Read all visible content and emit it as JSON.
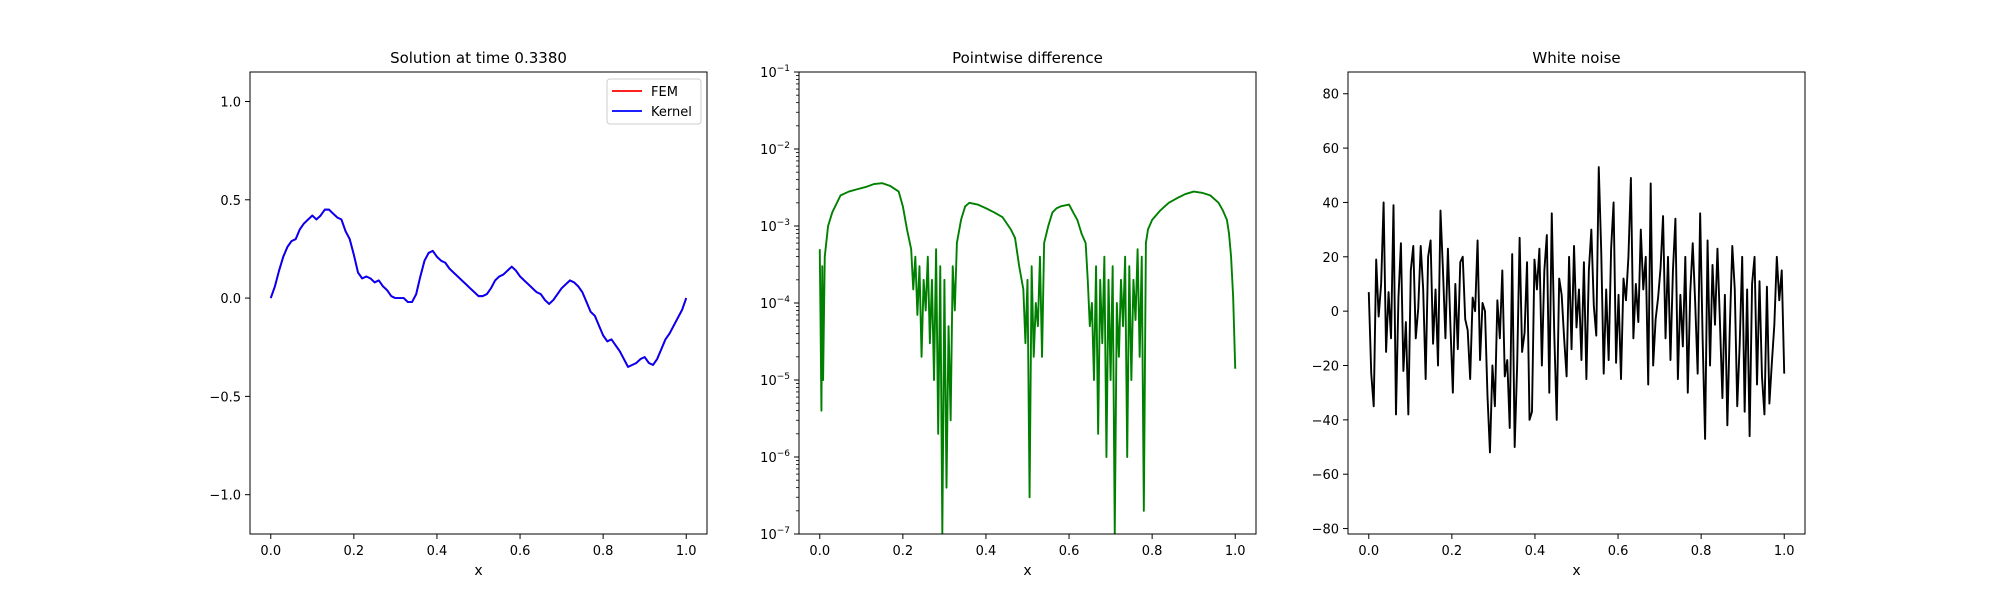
{
  "chart_data": [
    {
      "type": "line",
      "title": "Solution at time 0.3380",
      "xlabel": "x",
      "ylabel": "",
      "xlim": [
        -0.05,
        1.05
      ],
      "ylim": [
        -1.2,
        1.15
      ],
      "xticks": [
        "0.0",
        "0.2",
        "0.4",
        "0.6",
        "0.8",
        "1.0"
      ],
      "yticks": [
        "−1.0",
        "−0.5",
        "0.0",
        "0.5",
        "1.0"
      ],
      "legend": "top-right",
      "series": [
        {
          "name": "FEM",
          "color": "#ff0000",
          "x": [
            0.0,
            0.01,
            0.02,
            0.03,
            0.04,
            0.05,
            0.06,
            0.07,
            0.08,
            0.09,
            0.1,
            0.11,
            0.12,
            0.13,
            0.14,
            0.15,
            0.16,
            0.17,
            0.18,
            0.19,
            0.2,
            0.21,
            0.22,
            0.23,
            0.24,
            0.25,
            0.26,
            0.27,
            0.28,
            0.29,
            0.3,
            0.31,
            0.32,
            0.33,
            0.34,
            0.35,
            0.36,
            0.37,
            0.38,
            0.39,
            0.4,
            0.41,
            0.42,
            0.43,
            0.44,
            0.45,
            0.46,
            0.47,
            0.48,
            0.49,
            0.5,
            0.51,
            0.52,
            0.53,
            0.54,
            0.55,
            0.56,
            0.57,
            0.58,
            0.59,
            0.6,
            0.61,
            0.62,
            0.63,
            0.64,
            0.65,
            0.66,
            0.67,
            0.68,
            0.69,
            0.7,
            0.71,
            0.72,
            0.73,
            0.74,
            0.75,
            0.76,
            0.77,
            0.78,
            0.79,
            0.8,
            0.81,
            0.82,
            0.83,
            0.84,
            0.85,
            0.86,
            0.87,
            0.88,
            0.89,
            0.9,
            0.91,
            0.92,
            0.93,
            0.94,
            0.95,
            0.96,
            0.97,
            0.98,
            0.99,
            1.0
          ],
          "y": [
            0.0,
            0.06,
            0.14,
            0.21,
            0.26,
            0.29,
            0.3,
            0.35,
            0.38,
            0.4,
            0.42,
            0.4,
            0.42,
            0.45,
            0.45,
            0.43,
            0.41,
            0.4,
            0.34,
            0.3,
            0.22,
            0.13,
            0.1,
            0.11,
            0.1,
            0.08,
            0.09,
            0.06,
            0.04,
            0.01,
            0.0,
            0.0,
            0.0,
            -0.02,
            -0.02,
            0.02,
            0.11,
            0.19,
            0.23,
            0.24,
            0.21,
            0.19,
            0.18,
            0.15,
            0.13,
            0.11,
            0.09,
            0.07,
            0.05,
            0.03,
            0.01,
            0.01,
            0.02,
            0.05,
            0.09,
            0.11,
            0.12,
            0.14,
            0.16,
            0.14,
            0.11,
            0.09,
            0.07,
            0.05,
            0.03,
            0.02,
            -0.01,
            -0.03,
            -0.01,
            0.02,
            0.05,
            0.07,
            0.09,
            0.08,
            0.06,
            0.03,
            -0.02,
            -0.07,
            -0.09,
            -0.14,
            -0.19,
            -0.22,
            -0.21,
            -0.24,
            -0.27,
            -0.31,
            -0.35,
            -0.34,
            -0.33,
            -0.31,
            -0.3,
            -0.33,
            -0.34,
            -0.31,
            -0.26,
            -0.21,
            -0.18,
            -0.14,
            -0.1,
            -0.06,
            0.0
          ]
        },
        {
          "name": "Kernel",
          "color": "#0000ff",
          "x": [
            0.0,
            0.01,
            0.02,
            0.03,
            0.04,
            0.05,
            0.06,
            0.07,
            0.08,
            0.09,
            0.1,
            0.11,
            0.12,
            0.13,
            0.14,
            0.15,
            0.16,
            0.17,
            0.18,
            0.19,
            0.2,
            0.21,
            0.22,
            0.23,
            0.24,
            0.25,
            0.26,
            0.27,
            0.28,
            0.29,
            0.3,
            0.31,
            0.32,
            0.33,
            0.34,
            0.35,
            0.36,
            0.37,
            0.38,
            0.39,
            0.4,
            0.41,
            0.42,
            0.43,
            0.44,
            0.45,
            0.46,
            0.47,
            0.48,
            0.49,
            0.5,
            0.51,
            0.52,
            0.53,
            0.54,
            0.55,
            0.56,
            0.57,
            0.58,
            0.59,
            0.6,
            0.61,
            0.62,
            0.63,
            0.64,
            0.65,
            0.66,
            0.67,
            0.68,
            0.69,
            0.7,
            0.71,
            0.72,
            0.73,
            0.74,
            0.75,
            0.76,
            0.77,
            0.78,
            0.79,
            0.8,
            0.81,
            0.82,
            0.83,
            0.84,
            0.85,
            0.86,
            0.87,
            0.88,
            0.89,
            0.9,
            0.91,
            0.92,
            0.93,
            0.94,
            0.95,
            0.96,
            0.97,
            0.98,
            0.99,
            1.0
          ],
          "y": [
            0.0,
            0.06,
            0.14,
            0.21,
            0.26,
            0.29,
            0.3,
            0.35,
            0.38,
            0.4,
            0.42,
            0.4,
            0.42,
            0.45,
            0.45,
            0.43,
            0.41,
            0.4,
            0.34,
            0.3,
            0.22,
            0.13,
            0.1,
            0.11,
            0.1,
            0.08,
            0.09,
            0.06,
            0.04,
            0.01,
            0.0,
            0.0,
            0.0,
            -0.02,
            -0.02,
            0.02,
            0.11,
            0.19,
            0.23,
            0.24,
            0.21,
            0.19,
            0.18,
            0.15,
            0.13,
            0.11,
            0.09,
            0.07,
            0.05,
            0.03,
            0.01,
            0.01,
            0.02,
            0.05,
            0.09,
            0.11,
            0.12,
            0.14,
            0.16,
            0.14,
            0.11,
            0.09,
            0.07,
            0.05,
            0.03,
            0.02,
            -0.01,
            -0.03,
            -0.01,
            0.02,
            0.05,
            0.07,
            0.09,
            0.08,
            0.06,
            0.03,
            -0.02,
            -0.07,
            -0.09,
            -0.14,
            -0.19,
            -0.22,
            -0.21,
            -0.24,
            -0.27,
            -0.31,
            -0.35,
            -0.34,
            -0.33,
            -0.31,
            -0.3,
            -0.33,
            -0.34,
            -0.31,
            -0.26,
            -0.21,
            -0.18,
            -0.14,
            -0.1,
            -0.06,
            0.0
          ]
        }
      ]
    },
    {
      "type": "line",
      "title": "Pointwise difference",
      "xlabel": "x",
      "ylabel": "",
      "yscale": "log",
      "xlim": [
        -0.05,
        1.05
      ],
      "ylim": [
        1e-07,
        0.1
      ],
      "xticks": [
        "0.0",
        "0.2",
        "0.4",
        "0.6",
        "0.8",
        "1.0"
      ],
      "yticks": [
        {
          "base": "10",
          "exp": "−7"
        },
        {
          "base": "10",
          "exp": "−6"
        },
        {
          "base": "10",
          "exp": "−5"
        },
        {
          "base": "10",
          "exp": "−4"
        },
        {
          "base": "10",
          "exp": "−3"
        },
        {
          "base": "10",
          "exp": "−2"
        },
        {
          "base": "10",
          "exp": "−1"
        }
      ],
      "series": [
        {
          "color": "#008000",
          "x": [
            0.0,
            0.002,
            0.004,
            0.006,
            0.008,
            0.012,
            0.02,
            0.03,
            0.05,
            0.07,
            0.09,
            0.11,
            0.13,
            0.15,
            0.17,
            0.19,
            0.2,
            0.21,
            0.22,
            0.225,
            0.23,
            0.235,
            0.24,
            0.245,
            0.25,
            0.255,
            0.26,
            0.265,
            0.27,
            0.275,
            0.28,
            0.285,
            0.29,
            0.295,
            0.3,
            0.305,
            0.31,
            0.315,
            0.32,
            0.325,
            0.33,
            0.34,
            0.35,
            0.36,
            0.38,
            0.4,
            0.42,
            0.44,
            0.46,
            0.47,
            0.48,
            0.49,
            0.495,
            0.5,
            0.505,
            0.51,
            0.515,
            0.52,
            0.525,
            0.53,
            0.535,
            0.54,
            0.55,
            0.56,
            0.57,
            0.58,
            0.6,
            0.61,
            0.62,
            0.63,
            0.64,
            0.645,
            0.65,
            0.655,
            0.66,
            0.665,
            0.67,
            0.675,
            0.68,
            0.685,
            0.69,
            0.695,
            0.7,
            0.705,
            0.71,
            0.715,
            0.72,
            0.725,
            0.73,
            0.735,
            0.74,
            0.745,
            0.75,
            0.755,
            0.76,
            0.765,
            0.77,
            0.775,
            0.78,
            0.785,
            0.79,
            0.8,
            0.82,
            0.84,
            0.86,
            0.88,
            0.9,
            0.92,
            0.94,
            0.96,
            0.97,
            0.98,
            0.985,
            0.99,
            0.995,
            1.0
          ],
          "y": [
            0.0005,
            5e-05,
            4e-06,
            0.0003,
            1e-05,
            0.0004,
            0.001,
            0.0015,
            0.0025,
            0.0028,
            0.003,
            0.0032,
            0.0035,
            0.0036,
            0.0033,
            0.0028,
            0.0018,
            0.0009,
            0.0005,
            0.00015,
            0.0004,
            7e-05,
            0.0003,
            2e-05,
            0.0002,
            8e-05,
            0.0004,
            3e-05,
            0.0002,
            1e-05,
            0.0005,
            2e-06,
            0.0003,
            1e-07,
            0.0002,
            4e-07,
            5e-05,
            3e-06,
            0.0003,
            8e-05,
            0.0006,
            0.0012,
            0.0018,
            0.002,
            0.0019,
            0.0017,
            0.0015,
            0.0013,
            0.0009,
            0.0007,
            0.0003,
            0.00015,
            3e-05,
            0.0002,
            3e-07,
            0.0003,
            2e-05,
            0.0001,
            5e-05,
            0.0004,
            2e-05,
            0.0006,
            0.001,
            0.0015,
            0.0017,
            0.0018,
            0.0019,
            0.0015,
            0.0012,
            0.0008,
            0.0006,
            0.0002,
            5e-05,
            0.0001,
            1e-05,
            0.0003,
            2e-06,
            0.0002,
            3e-05,
            0.0004,
            1e-06,
            0.0002,
            1e-05,
            0.0003,
            1e-07,
            0.0001,
            2e-05,
            0.0002,
            5e-05,
            0.0004,
            1e-06,
            0.0003,
            1e-05,
            0.0002,
            6e-05,
            0.0005,
            2e-05,
            0.0004,
            2e-07,
            0.0006,
            0.0009,
            0.0012,
            0.0016,
            0.002,
            0.0023,
            0.0026,
            0.0028,
            0.0027,
            0.0025,
            0.002,
            0.0016,
            0.0012,
            0.0008,
            0.0004,
            0.00012,
            1.4e-05
          ]
        }
      ]
    },
    {
      "type": "line",
      "title": "White noise",
      "xlabel": "x",
      "ylabel": "",
      "xlim": [
        -0.05,
        1.05
      ],
      "ylim": [
        -82,
        88
      ],
      "xticks": [
        "0.0",
        "0.2",
        "0.4",
        "0.6",
        "0.8",
        "1.0"
      ],
      "yticks": [
        "−80",
        "−60",
        "−40",
        "−20",
        "0",
        "20",
        "40",
        "60",
        "80"
      ],
      "series": [
        {
          "color": "#000000",
          "x_start": 0.0,
          "x_end": 1.0,
          "y": [
            7,
            -23,
            -35,
            19,
            -2,
            10,
            40,
            -15,
            7,
            -10,
            39,
            -38,
            5,
            25,
            -22,
            -4,
            -38,
            15,
            24,
            -10,
            1,
            24,
            8,
            -25,
            20,
            26,
            -12,
            8,
            -20,
            37,
            15,
            -10,
            23,
            -5,
            -30,
            10,
            -14,
            18,
            20,
            -3,
            -7,
            -25,
            5,
            0,
            26,
            -18,
            3,
            0,
            -31,
            -52,
            -20,
            -35,
            4,
            -10,
            15,
            -24,
            -18,
            -43,
            21,
            -50,
            -20,
            27,
            -15,
            -8,
            18,
            -40,
            -37,
            19,
            8,
            23,
            -20,
            15,
            28,
            -30,
            36,
            -8,
            -40,
            12,
            6,
            -10,
            -24,
            20,
            -14,
            24,
            -6,
            8,
            -18,
            18,
            -25,
            15,
            30,
            2,
            -9,
            53,
            22,
            -23,
            8,
            -18,
            23,
            40,
            -19,
            6,
            -25,
            12,
            4,
            20,
            49,
            -10,
            10,
            -4,
            30,
            8,
            20,
            -27,
            47,
            -20,
            -3,
            5,
            16,
            35,
            -10,
            20,
            -18,
            15,
            34,
            -25,
            6,
            -13,
            20,
            -30,
            7,
            25,
            3,
            -23,
            36,
            -10,
            -47,
            26,
            -20,
            17,
            -5,
            23,
            -4,
            -32,
            6,
            -42,
            -6,
            24,
            8,
            -35,
            -12,
            20,
            -37,
            8,
            -46,
            10,
            20,
            -27,
            11,
            -24,
            -38,
            9,
            -34,
            -19,
            -5,
            20,
            4,
            15,
            -23
          ]
        }
      ]
    }
  ]
}
